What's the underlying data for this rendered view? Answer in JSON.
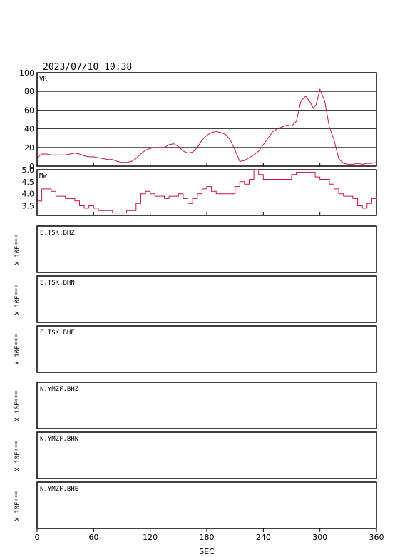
{
  "header": {
    "datetime": "2023/07/10  10:38"
  },
  "colors": {
    "trace": "#cc1144",
    "axis": "#000000",
    "background": "#ffffff"
  },
  "xaxis": {
    "label": "SEC",
    "ticks": [
      "0",
      "60",
      "120",
      "180",
      "240",
      "300",
      "360"
    ]
  },
  "chart_data": [
    {
      "type": "line",
      "name": "VR",
      "ylim": [
        0,
        100
      ],
      "yticks": [
        "0",
        "20",
        "40",
        "60",
        "80",
        "100"
      ],
      "xlim": [
        0,
        360
      ],
      "grid": true,
      "x": [
        0,
        5,
        10,
        15,
        20,
        25,
        30,
        35,
        40,
        45,
        50,
        55,
        60,
        65,
        70,
        75,
        80,
        85,
        90,
        95,
        100,
        105,
        110,
        115,
        120,
        125,
        130,
        135,
        140,
        145,
        150,
        155,
        160,
        165,
        170,
        175,
        180,
        185,
        190,
        195,
        200,
        205,
        210,
        215,
        220,
        225,
        230,
        235,
        240,
        245,
        250,
        255,
        260,
        265,
        270,
        275,
        280,
        285,
        290,
        293,
        296,
        300,
        305,
        310,
        315,
        320,
        325,
        330,
        335,
        340,
        345,
        350,
        355,
        360
      ],
      "y": [
        9,
        13,
        13,
        12,
        12,
        12,
        12,
        13,
        14,
        13,
        11,
        10,
        10,
        9,
        8,
        7,
        7,
        5,
        4,
        4,
        5,
        8,
        13,
        17,
        19,
        20,
        20,
        20,
        23,
        24,
        21,
        16,
        14,
        15,
        20,
        28,
        33,
        36,
        37,
        36,
        34,
        28,
        17,
        5,
        6,
        9,
        12,
        16,
        23,
        30,
        37,
        40,
        42,
        44,
        43,
        48,
        70,
        75,
        68,
        62,
        66,
        82,
        70,
        42,
        28,
        8,
        3,
        2,
        2,
        3,
        2,
        3,
        3,
        4
      ]
    },
    {
      "type": "line",
      "name": "Mw",
      "ylim": [
        3.1,
        5.0
      ],
      "yticks": [
        "3.5",
        "4.0",
        "4.5",
        "5.0"
      ],
      "xlim": [
        0,
        360
      ],
      "grid": false,
      "x": [
        0,
        5,
        10,
        15,
        20,
        25,
        30,
        35,
        40,
        45,
        50,
        55,
        60,
        65,
        70,
        75,
        80,
        85,
        90,
        95,
        100,
        105,
        110,
        115,
        120,
        125,
        130,
        135,
        140,
        145,
        150,
        155,
        160,
        165,
        170,
        175,
        180,
        185,
        190,
        195,
        200,
        205,
        210,
        215,
        220,
        225,
        230,
        235,
        240,
        245,
        250,
        255,
        260,
        265,
        270,
        275,
        280,
        285,
        290,
        295,
        300,
        305,
        310,
        315,
        320,
        325,
        330,
        335,
        340,
        345,
        350,
        355,
        360
      ],
      "y": [
        3.7,
        4.2,
        4.2,
        4.1,
        3.9,
        3.9,
        3.8,
        3.8,
        3.7,
        3.5,
        3.4,
        3.5,
        3.4,
        3.3,
        3.3,
        3.3,
        3.2,
        3.2,
        3.2,
        3.3,
        3.3,
        3.6,
        4.0,
        4.1,
        4.0,
        3.9,
        3.9,
        3.8,
        3.9,
        3.9,
        4.0,
        3.8,
        3.6,
        3.8,
        4.0,
        4.2,
        4.3,
        4.1,
        4.0,
        4.0,
        4.0,
        4.0,
        4.3,
        4.5,
        4.4,
        4.6,
        5.0,
        4.8,
        4.6,
        4.6,
        4.6,
        4.6,
        4.6,
        4.6,
        4.8,
        4.9,
        4.9,
        4.9,
        4.9,
        4.7,
        4.6,
        4.6,
        4.4,
        4.2,
        4.0,
        3.9,
        3.9,
        3.8,
        3.5,
        3.4,
        3.6,
        3.8,
        3.9
      ]
    }
  ],
  "stations": [
    {
      "name": "E.TSK.BHZ",
      "scale": "X 10E***"
    },
    {
      "name": "E.TSK.BHN",
      "scale": "X 10E***"
    },
    {
      "name": "E.TSK.BHE",
      "scale": "X 10E***"
    },
    {
      "name": "N.YMZF.BHZ",
      "scale": "X 10E***"
    },
    {
      "name": "N.YMZF.BHN",
      "scale": "X 10E***"
    },
    {
      "name": "N.YMZF.BHE",
      "scale": "X 10E***"
    }
  ]
}
